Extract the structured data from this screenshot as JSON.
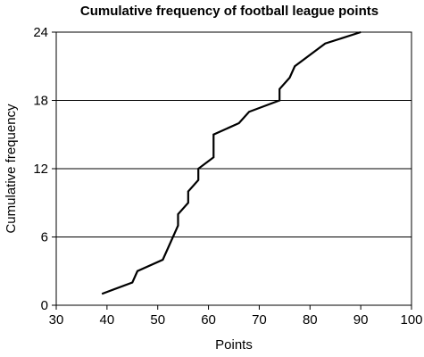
{
  "chart_data": {
    "type": "line",
    "title": "Cumulative frequency of football league points",
    "xlabel": "Points",
    "ylabel": "Cumulative frequency",
    "xlim": [
      30,
      100
    ],
    "ylim": [
      0,
      24
    ],
    "x_ticks": [
      30,
      40,
      50,
      60,
      70,
      80,
      90,
      100
    ],
    "y_ticks": [
      0,
      6,
      12,
      18,
      24
    ],
    "grid": "horizontal",
    "legend": "none",
    "line_color": "#000000",
    "series": [
      {
        "points": [
          [
            39,
            1
          ],
          [
            45,
            2
          ],
          [
            46,
            3
          ],
          [
            51,
            4
          ],
          [
            53,
            6
          ],
          [
            54,
            7
          ],
          [
            54,
            8
          ],
          [
            56,
            9
          ],
          [
            56,
            10
          ],
          [
            58,
            11
          ],
          [
            58,
            12
          ],
          [
            61,
            13
          ],
          [
            61,
            15
          ],
          [
            66,
            16
          ],
          [
            68,
            17
          ],
          [
            74,
            18
          ],
          [
            74,
            19
          ],
          [
            76,
            20
          ],
          [
            77,
            21
          ],
          [
            83,
            23
          ],
          [
            90,
            24
          ]
        ]
      }
    ]
  }
}
